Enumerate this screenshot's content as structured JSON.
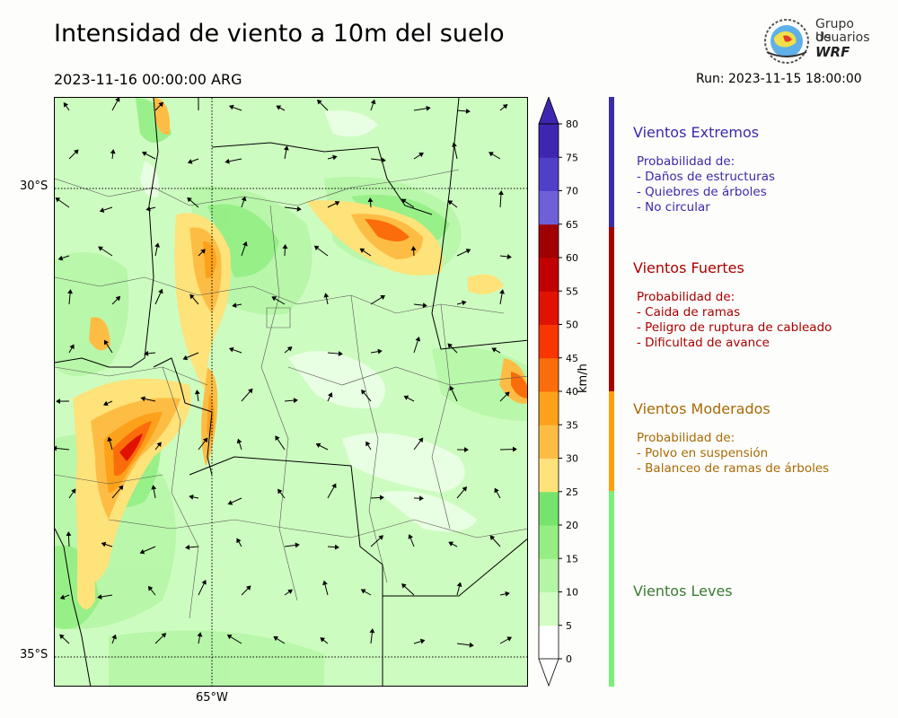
{
  "title": "Intensidad de viento a 10m del suelo",
  "valid_time": "2023-11-16 00:00:00 ARG",
  "run_time": "Run: 2023-11-15 18:00:00",
  "logo": {
    "line1": "Grupo de",
    "line2": "Usuarios",
    "line3": "WRF",
    "icon": "globe-icon"
  },
  "chart_data": {
    "type": "heatmap",
    "variable": "wind speed at 10 m",
    "lat_labels": [
      "30°S",
      "35°S"
    ],
    "lon_labels": [
      "65°W"
    ],
    "colorbar": {
      "unit": "km/h",
      "ticks": [
        0,
        5,
        10,
        15,
        20,
        25,
        30,
        35,
        40,
        45,
        50,
        55,
        60,
        65,
        70,
        75,
        80
      ],
      "colors": [
        "#ffffff",
        "#d2fdc4",
        "#b5f6a6",
        "#94ee84",
        "#76e46c",
        "#fee27a",
        "#fdbd45",
        "#fda11b",
        "#fb6d0a",
        "#f93500",
        "#e11200",
        "#c30000",
        "#a00000",
        "#7060d8",
        "#5040c8",
        "#3f26b0"
      ],
      "extend": "both"
    }
  },
  "categories": [
    {
      "title": "Vientos Extremos",
      "color": "#3b2aaa",
      "strip": "#3c2ca8",
      "lines": [
        "Probabilidad de:",
        "- Daños de estructuras",
        "- Quiebres de árboles",
        "- No circular"
      ]
    },
    {
      "title": "Vientos Fuertes",
      "color": "#a80000",
      "strip": "#a40000",
      "lines": [
        "Probabilidad de:",
        "- Caida de ramas",
        "- Peligro de ruptura de cableado",
        "- Dificultad de avance"
      ]
    },
    {
      "title": "Vientos Moderados",
      "color": "#a86a05",
      "strip": "#fd9f0c",
      "lines": [
        "Probabilidad de:",
        "- Polvo en suspensión",
        "- Balanceo de ramas de árboles"
      ]
    },
    {
      "title": "Vientos Leves",
      "color": "#3b7a34",
      "strip": "#78f07a",
      "lines": []
    }
  ]
}
